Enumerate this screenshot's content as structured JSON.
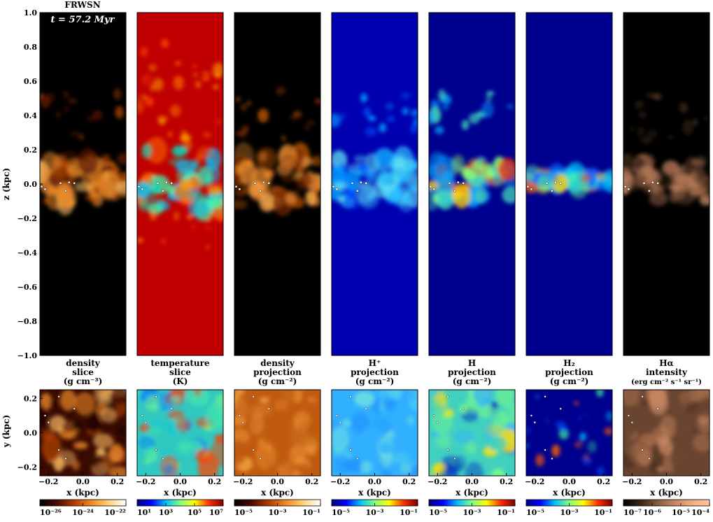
{
  "figure": {
    "run_label": "FRWSN",
    "time_label": "t =  57.2 Myr",
    "z_axis_label": "z (kpc)",
    "y_axis_label": "y (kpc)",
    "x_axis_label": "x (kpc)"
  },
  "chart_data": {
    "type": "heatmap",
    "z_axis_ticks": [
      "1.0",
      "0.8",
      "0.6",
      "0.4",
      "0.2",
      "0.0",
      "−0.2",
      "−0.4",
      "−0.6",
      "−0.8",
      "−1.0"
    ],
    "y_axis_ticks": [
      "0.2",
      "0.0",
      "−0.2"
    ],
    "x_axis_ticks": [
      "−0.2",
      "0.0",
      "0.2"
    ],
    "zlim": [
      -1.0,
      1.0
    ],
    "xlim": [
      -0.25,
      0.25
    ],
    "ylim": [
      -0.25,
      0.25
    ],
    "panels": [
      {
        "title": [
          "density",
          "slice",
          "(g cm⁻³)"
        ],
        "cbar_ticks": [
          "10⁻²⁶",
          "10⁻²⁴",
          "10⁻²²"
        ],
        "cmap": "afmhot",
        "bg": "#000000"
      },
      {
        "title": [
          "temperature",
          "slice",
          "(K)"
        ],
        "cbar_ticks": [
          "10¹",
          "10³",
          "10⁵",
          "10⁷"
        ],
        "cmap": "jet",
        "bg": "#c00000"
      },
      {
        "title": [
          "density",
          "projection",
          "(g cm⁻²)"
        ],
        "cbar_ticks": [
          "10⁻⁵",
          "10⁻³",
          "10⁻¹"
        ],
        "cmap": "afmhot",
        "bg": "#000000"
      },
      {
        "title": [
          "H⁺",
          "projection",
          "(g cm⁻²)"
        ],
        "cbar_ticks": [
          "10⁻⁵",
          "10⁻³",
          "10⁻¹"
        ],
        "cmap": "jet",
        "bg": "#0000b0"
      },
      {
        "title": [
          "H",
          "projection",
          "(g cm⁻²)"
        ],
        "cbar_ticks": [
          "10⁻⁵",
          "10⁻³",
          "10⁻¹"
        ],
        "cmap": "jet",
        "bg": "#00008f"
      },
      {
        "title": [
          "H₂",
          "projection",
          "(g cm⁻²)"
        ],
        "cbar_ticks": [
          "10⁻⁵",
          "10⁻³",
          "10⁻¹"
        ],
        "cmap": "jet",
        "bg": "#00008f"
      },
      {
        "title": [
          "Hα",
          "intensity",
          "(erg cm⁻² s⁻¹ sr⁻¹)"
        ],
        "cbar_ticks": [
          "10⁻⁷",
          "10⁻⁶",
          "10⁻⁵",
          "10⁻⁴"
        ],
        "cmap": "copper",
        "bg": "#000000"
      }
    ]
  }
}
